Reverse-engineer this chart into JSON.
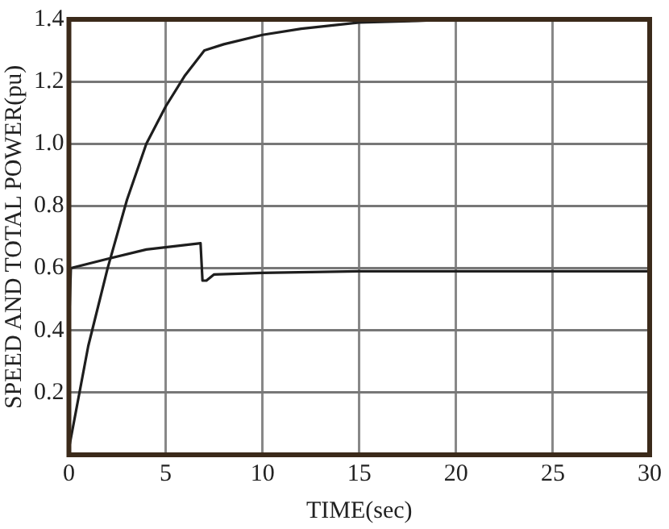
{
  "chart_data": {
    "type": "line",
    "xlabel": "TIME(sec)",
    "ylabel": "SPEED AND TOTAL POWER(pu)",
    "x": [
      0,
      1,
      2,
      3,
      4,
      5,
      6,
      7,
      8,
      10,
      12,
      15,
      18,
      20,
      25,
      30
    ],
    "series": [
      {
        "color": "#1e1e1e",
        "values": [
          0.02,
          0.35,
          0.6,
          0.82,
          1.0,
          1.12,
          1.22,
          1.3,
          1.32,
          1.35,
          1.37,
          1.39,
          1.395,
          1.4,
          1.4,
          1.4
        ]
      },
      {
        "color": "#1e1e1e",
        "x": [
          0,
          0.1,
          2,
          4,
          6.8,
          6.9,
          7.1,
          7.5,
          10,
          15,
          20,
          30
        ],
        "values": [
          0.4,
          0.6,
          0.63,
          0.66,
          0.68,
          0.56,
          0.56,
          0.58,
          0.585,
          0.59,
          0.59,
          0.59
        ]
      }
    ],
    "xlim": [
      0,
      30
    ],
    "xticks": [
      0,
      5,
      10,
      15,
      20,
      25,
      30
    ],
    "ylim": [
      0,
      1.4
    ],
    "yticks": [
      0.2,
      0.4,
      0.6,
      0.8,
      {
        "value": 1,
        "label": "1.0"
      },
      1.2,
      1.4
    ],
    "grid": true,
    "legend": false,
    "marker": "none",
    "line_style": "solid"
  }
}
